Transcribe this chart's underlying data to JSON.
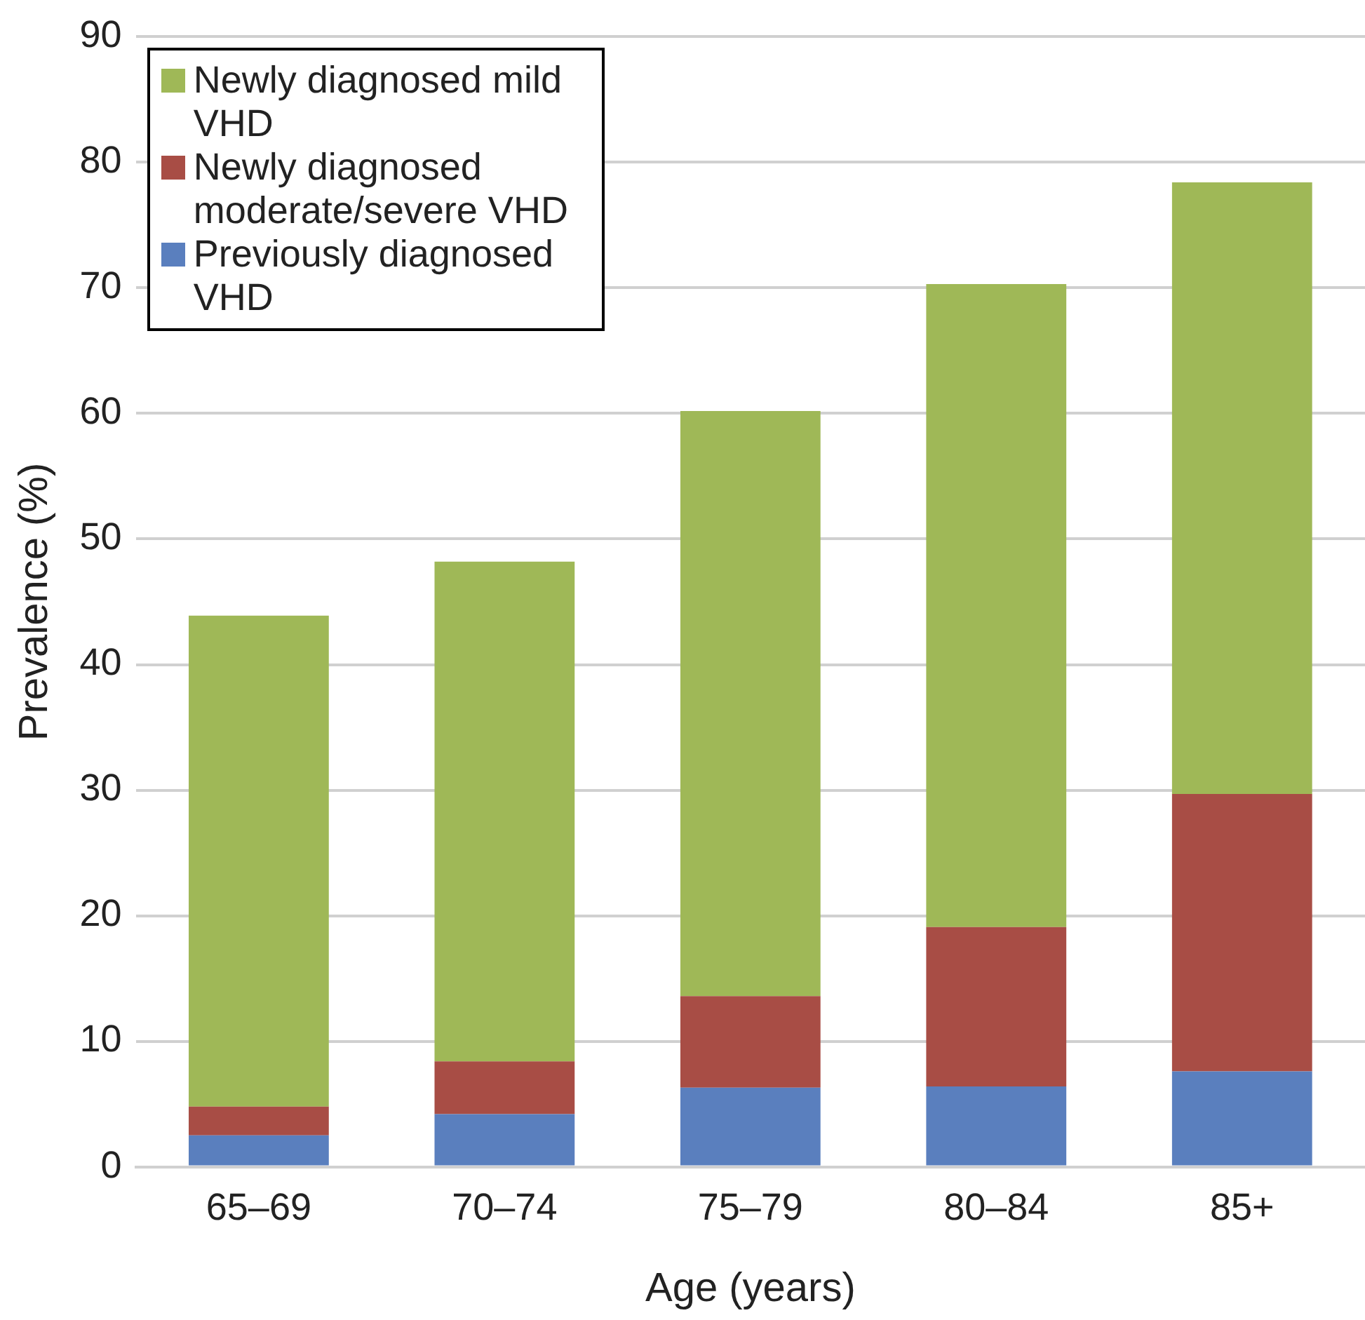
{
  "chart_data": {
    "type": "bar",
    "xlabel": "Age (years)",
    "ylabel": "Prevalence (%)",
    "categories": [
      "65–69",
      "70–74",
      "75–79",
      "80–84",
      "85+"
    ],
    "stacked": true,
    "series": [
      {
        "name": "Previously diagnosed VHD",
        "color": "#5a7fbe",
        "values": [
          2.5,
          4.2,
          6.3,
          6.4,
          7.6
        ]
      },
      {
        "name": "Newly diagnosed moderate/severe VHD",
        "color": "#a84d45",
        "values": [
          2.3,
          4.2,
          7.3,
          12.7,
          22.1
        ]
      },
      {
        "name": "Newly diagnosed mild VHD",
        "color": "#9fb857",
        "values": [
          39.1,
          39.8,
          46.6,
          51.2,
          48.7
        ]
      }
    ],
    "ylim": [
      0,
      90
    ],
    "yticks": [
      0,
      10,
      20,
      30,
      40,
      50,
      60,
      70,
      80,
      90
    ],
    "grid": "y",
    "legend": "top left"
  }
}
